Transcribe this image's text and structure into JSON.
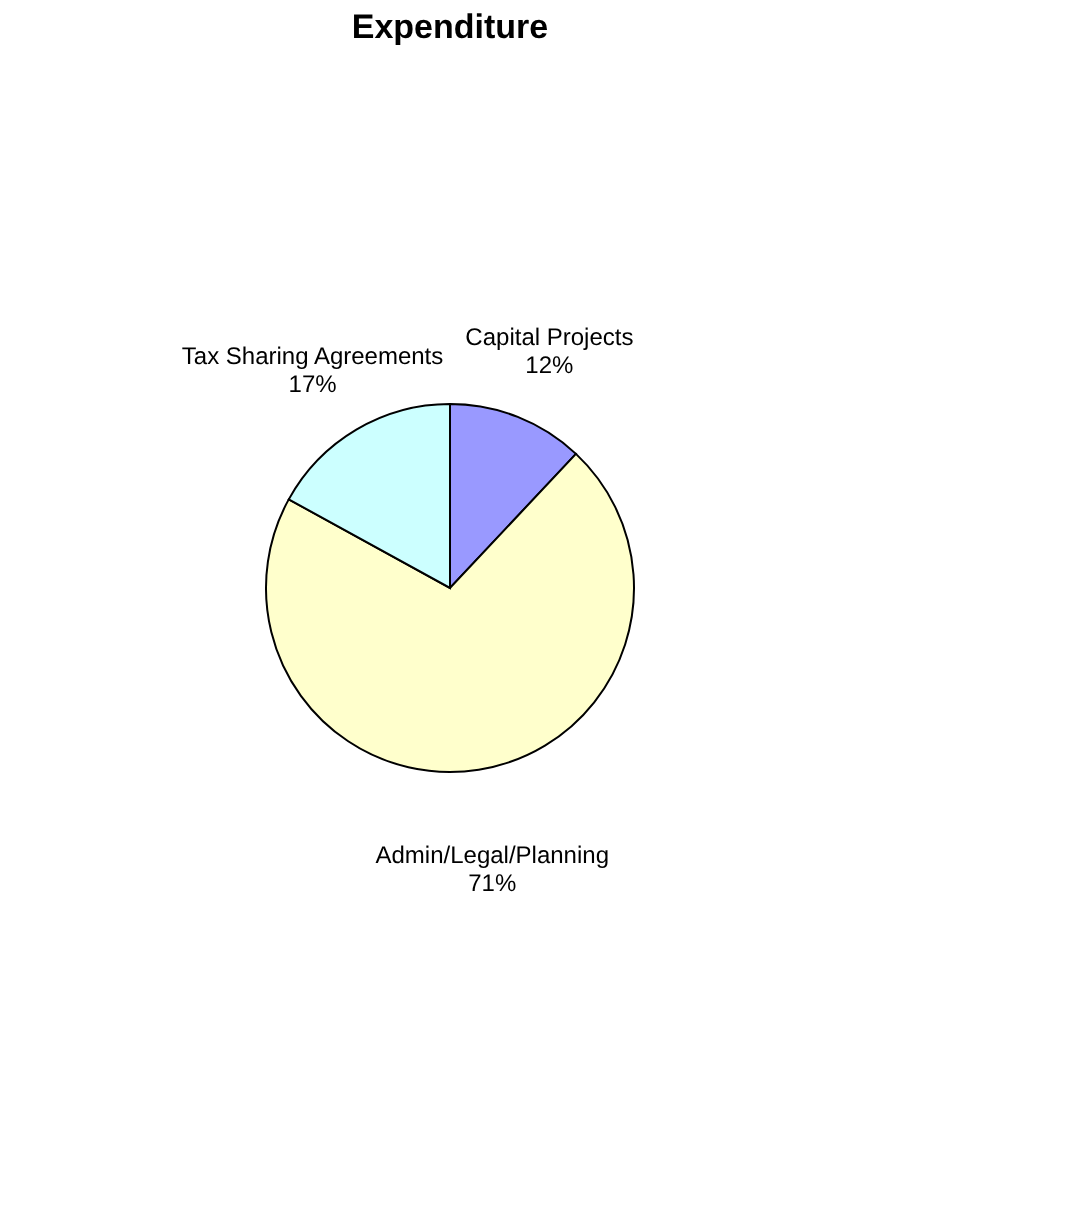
{
  "chart_data": {
    "type": "pie",
    "title": "Expenditure",
    "categories": [
      "Capital Projects",
      "Admin/Legal/Planning",
      "Tax Sharing Agreements"
    ],
    "values": [
      12,
      71,
      17
    ],
    "value_labels": [
      "12%",
      "71%",
      "17%"
    ],
    "colors": [
      "#9999ff",
      "#ffffcc",
      "#ccffff"
    ],
    "legend": false
  }
}
